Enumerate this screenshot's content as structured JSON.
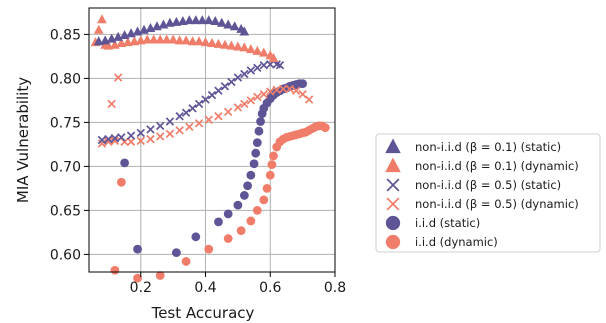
{
  "chart_data": {
    "type": "scatter",
    "title": "",
    "xlabel": "Test Accuracy",
    "ylabel": "MIA Vulnerability",
    "xlim": [
      0.04,
      0.8
    ],
    "ylim": [
      0.58,
      0.88
    ],
    "xticks": [
      0.2,
      0.4,
      0.6,
      0.8
    ],
    "xtick_labels": [
      "0.2",
      "0.4",
      "0.6",
      "0.8"
    ],
    "yticks": [
      0.6,
      0.65,
      0.7,
      0.75,
      0.8,
      0.85
    ],
    "ytick_labels": [
      "0.60",
      "0.65",
      "0.70",
      "0.75",
      "0.80",
      "0.85"
    ],
    "grid": true,
    "legend_placement": "right, outside plot",
    "series": [
      {
        "name": "non-i.i.d (β = 0.1) (static)",
        "marker": "triangle",
        "color": "#5e5596",
        "x": [
          0.07,
          0.09,
          0.11,
          0.13,
          0.15,
          0.17,
          0.19,
          0.21,
          0.23,
          0.25,
          0.27,
          0.29,
          0.31,
          0.33,
          0.35,
          0.37,
          0.39,
          0.41,
          0.43,
          0.45,
          0.47,
          0.49,
          0.51,
          0.52
        ],
        "y": [
          0.842,
          0.843,
          0.845,
          0.847,
          0.849,
          0.851,
          0.853,
          0.855,
          0.857,
          0.859,
          0.861,
          0.863,
          0.864,
          0.865,
          0.866,
          0.866,
          0.866,
          0.866,
          0.865,
          0.863,
          0.861,
          0.859,
          0.856,
          0.853
        ]
      },
      {
        "name": "non-i.i.d (β = 0.1) (dynamic)",
        "marker": "triangle",
        "color": "#f07d6a",
        "x": [
          0.06,
          0.07,
          0.08,
          0.09,
          0.1,
          0.12,
          0.14,
          0.16,
          0.18,
          0.2,
          0.22,
          0.24,
          0.26,
          0.28,
          0.3,
          0.32,
          0.34,
          0.36,
          0.38,
          0.4,
          0.42,
          0.44,
          0.46,
          0.48,
          0.5,
          0.52,
          0.54,
          0.56,
          0.58,
          0.6,
          0.61
        ],
        "y": [
          0.841,
          0.855,
          0.867,
          0.838,
          0.837,
          0.838,
          0.84,
          0.841,
          0.842,
          0.843,
          0.844,
          0.844,
          0.844,
          0.844,
          0.844,
          0.843,
          0.843,
          0.842,
          0.842,
          0.841,
          0.84,
          0.839,
          0.838,
          0.837,
          0.836,
          0.835,
          0.833,
          0.831,
          0.829,
          0.826,
          0.823
        ]
      },
      {
        "name": "non-i.i.d (β = 0.5) (static)",
        "marker": "x",
        "color": "#5e5596",
        "x": [
          0.08,
          0.1,
          0.12,
          0.14,
          0.17,
          0.2,
          0.23,
          0.26,
          0.29,
          0.32,
          0.34,
          0.36,
          0.38,
          0.4,
          0.42,
          0.44,
          0.46,
          0.48,
          0.5,
          0.52,
          0.54,
          0.56,
          0.58,
          0.6,
          0.62,
          0.63
        ],
        "y": [
          0.73,
          0.731,
          0.732,
          0.733,
          0.735,
          0.738,
          0.742,
          0.746,
          0.751,
          0.757,
          0.761,
          0.766,
          0.771,
          0.776,
          0.781,
          0.786,
          0.791,
          0.796,
          0.801,
          0.805,
          0.809,
          0.812,
          0.815,
          0.816,
          0.816,
          0.815
        ]
      },
      {
        "name": "non-i.i.d (β = 0.5) (dynamic)",
        "marker": "x",
        "color": "#f07d6a",
        "x": [
          0.08,
          0.1,
          0.11,
          0.12,
          0.13,
          0.15,
          0.17,
          0.2,
          0.23,
          0.26,
          0.29,
          0.32,
          0.35,
          0.38,
          0.41,
          0.44,
          0.47,
          0.5,
          0.52,
          0.54,
          0.56,
          0.58,
          0.6,
          0.62,
          0.64,
          0.66,
          0.68,
          0.7,
          0.72
        ],
        "y": [
          0.726,
          0.728,
          0.771,
          0.729,
          0.801,
          0.728,
          0.728,
          0.729,
          0.731,
          0.734,
          0.737,
          0.741,
          0.745,
          0.749,
          0.753,
          0.757,
          0.762,
          0.767,
          0.771,
          0.775,
          0.779,
          0.782,
          0.785,
          0.787,
          0.788,
          0.788,
          0.786,
          0.782,
          0.776
        ]
      },
      {
        "name": "i.i.d (static)",
        "marker": "circle",
        "color": "#5e5596",
        "x": [
          0.15,
          0.19,
          0.31,
          0.37,
          0.44,
          0.47,
          0.5,
          0.52,
          0.53,
          0.54,
          0.55,
          0.555,
          0.56,
          0.565,
          0.57,
          0.575,
          0.58,
          0.59,
          0.6,
          0.61,
          0.62,
          0.63,
          0.64,
          0.65,
          0.66,
          0.67,
          0.68,
          0.69,
          0.7
        ],
        "y": [
          0.704,
          0.606,
          0.602,
          0.62,
          0.637,
          0.646,
          0.656,
          0.667,
          0.678,
          0.69,
          0.703,
          0.715,
          0.727,
          0.74,
          0.751,
          0.76,
          0.766,
          0.772,
          0.777,
          0.781,
          0.784,
          0.786,
          0.788,
          0.789,
          0.791,
          0.792,
          0.793,
          0.794,
          0.794
        ]
      },
      {
        "name": "i.i.d (dynamic)",
        "marker": "circle",
        "color": "#f07d6a",
        "x": [
          0.12,
          0.14,
          0.19,
          0.26,
          0.34,
          0.41,
          0.47,
          0.51,
          0.54,
          0.56,
          0.58,
          0.59,
          0.6,
          0.605,
          0.61,
          0.62,
          0.63,
          0.64,
          0.65,
          0.66,
          0.67,
          0.68,
          0.69,
          0.7,
          0.71,
          0.72,
          0.73,
          0.74,
          0.75,
          0.76,
          0.77
        ],
        "y": [
          0.582,
          0.682,
          0.573,
          0.576,
          0.592,
          0.606,
          0.618,
          0.627,
          0.638,
          0.65,
          0.662,
          0.675,
          0.69,
          0.702,
          0.712,
          0.722,
          0.728,
          0.731,
          0.733,
          0.734,
          0.735,
          0.736,
          0.737,
          0.738,
          0.739,
          0.741,
          0.743,
          0.745,
          0.746,
          0.746,
          0.744
        ]
      }
    ]
  }
}
